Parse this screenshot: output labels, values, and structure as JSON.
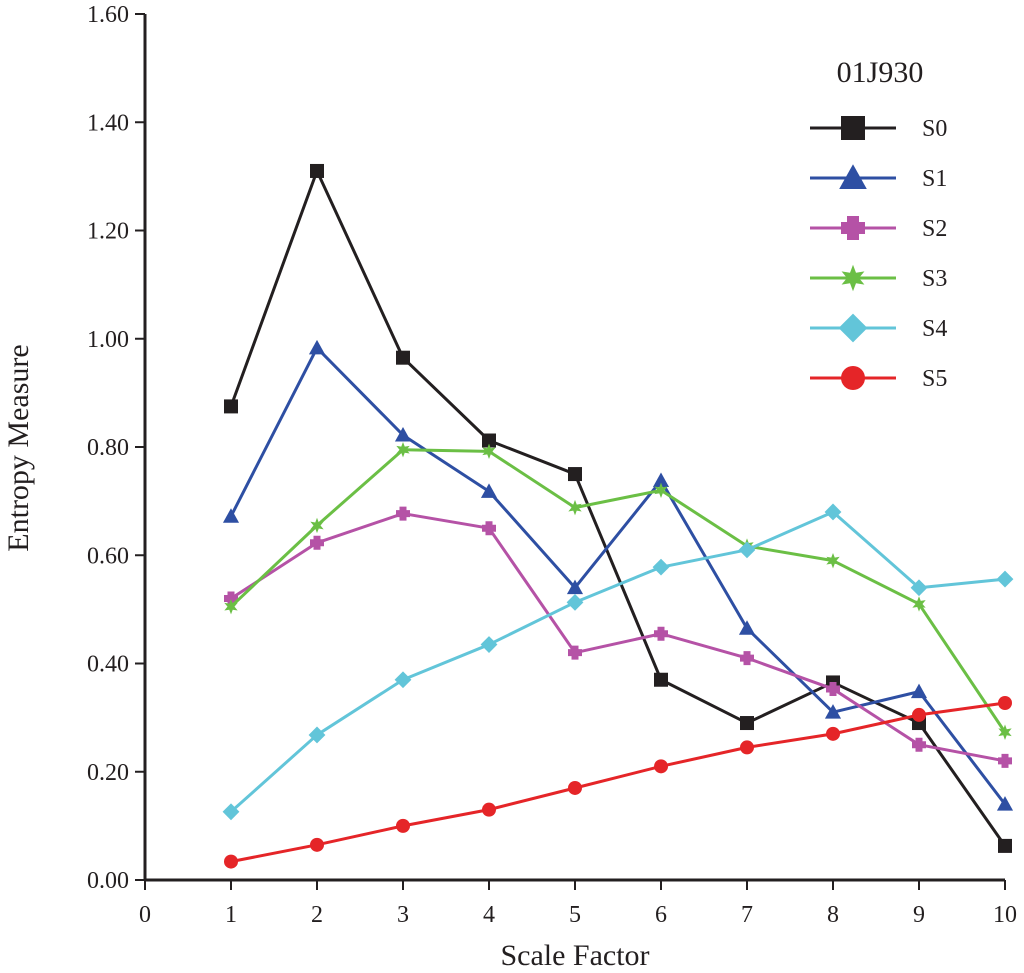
{
  "chart_data": {
    "type": "line",
    "title": "01J930",
    "xlabel": "Scale Factor",
    "ylabel": "Entropy Measure",
    "xlim": [
      0,
      10
    ],
    "ylim": [
      0,
      1.6
    ],
    "x": [
      1,
      2,
      3,
      4,
      5,
      6,
      7,
      8,
      9,
      10
    ],
    "x_ticks": [
      "0",
      "1",
      "2",
      "3",
      "4",
      "5",
      "6",
      "7",
      "8",
      "9",
      "10"
    ],
    "y_ticks": [
      "0.00",
      "0.20",
      "0.40",
      "0.60",
      "0.80",
      "1.00",
      "1.20",
      "1.40",
      "1.60"
    ],
    "legend_position": "top-right",
    "grid": false,
    "series": [
      {
        "name": "S0",
        "color": "#231f20",
        "marker": "square",
        "values": [
          0.875,
          1.31,
          0.965,
          0.812,
          0.75,
          0.37,
          0.29,
          0.365,
          0.29,
          0.063
        ]
      },
      {
        "name": "S1",
        "color": "#2e4fa3",
        "marker": "triangle",
        "values": [
          0.672,
          0.983,
          0.822,
          0.718,
          0.54,
          0.738,
          0.465,
          0.31,
          0.348,
          0.14
        ]
      },
      {
        "name": "S2",
        "color": "#b552a6",
        "marker": "plus",
        "values": [
          0.52,
          0.623,
          0.677,
          0.65,
          0.42,
          0.455,
          0.41,
          0.353,
          0.25,
          0.22
        ]
      },
      {
        "name": "S3",
        "color": "#6bbf45",
        "marker": "star",
        "values": [
          0.505,
          0.655,
          0.795,
          0.792,
          0.688,
          0.72,
          0.617,
          0.59,
          0.51,
          0.273
        ]
      },
      {
        "name": "S4",
        "color": "#62c5d9",
        "marker": "diamond",
        "values": [
          0.126,
          0.268,
          0.37,
          0.435,
          0.513,
          0.578,
          0.61,
          0.68,
          0.54,
          0.556
        ]
      },
      {
        "name": "S5",
        "color": "#e52528",
        "marker": "circle",
        "values": [
          0.034,
          0.065,
          0.1,
          0.13,
          0.17,
          0.21,
          0.245,
          0.27,
          0.305,
          0.327
        ]
      }
    ]
  }
}
